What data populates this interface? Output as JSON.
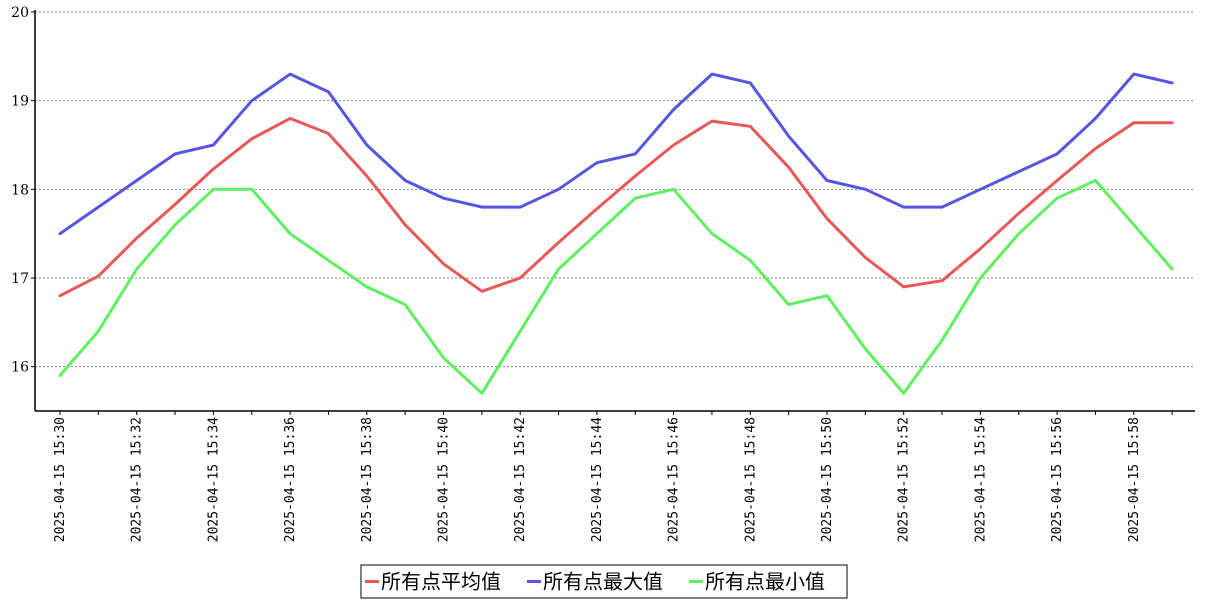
{
  "chart_data": {
    "type": "line",
    "x": [
      "2025-04-15 15:30",
      "2025-04-15 15:31",
      "2025-04-15 15:32",
      "2025-04-15 15:33",
      "2025-04-15 15:34",
      "2025-04-15 15:35",
      "2025-04-15 15:36",
      "2025-04-15 15:37",
      "2025-04-15 15:38",
      "2025-04-15 15:39",
      "2025-04-15 15:40",
      "2025-04-15 15:41",
      "2025-04-15 15:42",
      "2025-04-15 15:43",
      "2025-04-15 15:44",
      "2025-04-15 15:45",
      "2025-04-15 15:46",
      "2025-04-15 15:47",
      "2025-04-15 15:48",
      "2025-04-15 15:49",
      "2025-04-15 15:50",
      "2025-04-15 15:51",
      "2025-04-15 15:52",
      "2025-04-15 15:53",
      "2025-04-15 15:54",
      "2025-04-15 15:55",
      "2025-04-15 15:56",
      "2025-04-15 15:57",
      "2025-04-15 15:58",
      "2025-04-15 15:59"
    ],
    "x_tick_labels": [
      "2025-04-15 15:30",
      "2025-04-15 15:32",
      "2025-04-15 15:34",
      "2025-04-15 15:36",
      "2025-04-15 15:38",
      "2025-04-15 15:40",
      "2025-04-15 15:42",
      "2025-04-15 15:44",
      "2025-04-15 15:46",
      "2025-04-15 15:48",
      "2025-04-15 15:50",
      "2025-04-15 15:52",
      "2025-04-15 15:54",
      "2025-04-15 15:56",
      "2025-04-15 15:58"
    ],
    "y_ticks": [
      16,
      17,
      18,
      19,
      20
    ],
    "ylim": [
      15.5,
      20
    ],
    "grid": true,
    "legend_position": "bottom-center",
    "series": [
      {
        "name": "所有点平均值",
        "color": "#e85858",
        "values": [
          16.8,
          17.02,
          17.45,
          17.83,
          18.23,
          18.57,
          18.8,
          18.63,
          18.15,
          17.6,
          17.16,
          16.85,
          17.0,
          17.4,
          17.78,
          18.15,
          18.5,
          18.77,
          18.71,
          18.25,
          17.67,
          17.23,
          16.9,
          16.97,
          17.33,
          17.73,
          18.1,
          18.46,
          18.75,
          18.75
        ]
      },
      {
        "name": "所有点最大值",
        "color": "#5555e0",
        "values": [
          17.5,
          17.8,
          18.1,
          18.4,
          18.5,
          19.0,
          19.3,
          19.1,
          18.5,
          18.1,
          17.9,
          17.8,
          17.8,
          18.0,
          18.3,
          18.4,
          18.9,
          19.3,
          19.2,
          18.6,
          18.1,
          18.0,
          17.8,
          17.8,
          18.0,
          18.2,
          18.4,
          18.8,
          19.3,
          19.2
        ]
      },
      {
        "name": "所有点最小值",
        "color": "#5ef05e",
        "values": [
          15.9,
          16.4,
          17.1,
          17.6,
          18.0,
          18.0,
          17.5,
          17.2,
          16.9,
          16.7,
          16.1,
          15.7,
          16.4,
          17.1,
          17.5,
          17.9,
          18.0,
          17.5,
          17.2,
          16.7,
          16.8,
          16.2,
          15.7,
          16.3,
          17.0,
          17.5,
          17.9,
          18.1,
          17.6,
          17.1
        ]
      }
    ]
  }
}
